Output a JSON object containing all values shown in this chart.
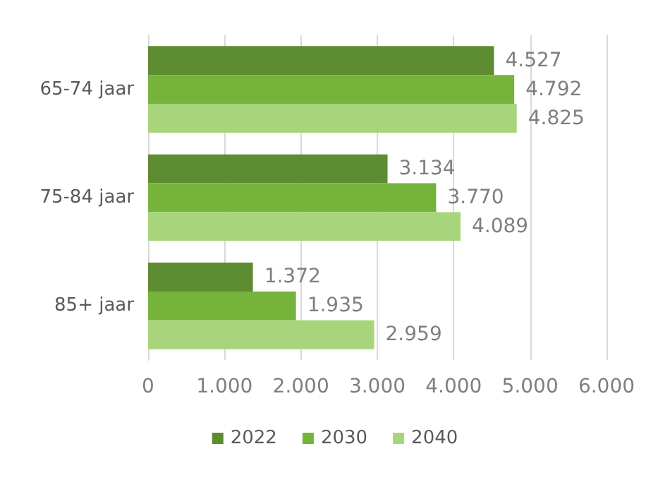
{
  "chart_data": {
    "type": "bar",
    "orientation": "horizontal",
    "categories": [
      "65-74 jaar",
      "75-84 jaar",
      "85+ jaar"
    ],
    "series": [
      {
        "name": "2022",
        "color": "#5e8c31",
        "values": [
          4527,
          3134,
          1372
        ],
        "value_labels": [
          "4.527",
          "3.134",
          "1.372"
        ]
      },
      {
        "name": "2030",
        "color": "#76b33b",
        "values": [
          4792,
          3770,
          1935
        ],
        "value_labels": [
          "4.792",
          "3.770",
          "1.935"
        ]
      },
      {
        "name": "2040",
        "color": "#a8d57b",
        "values": [
          4825,
          4089,
          2959
        ],
        "value_labels": [
          "4.825",
          "4.089",
          "2.959"
        ]
      }
    ],
    "xlim": [
      0,
      6000
    ],
    "xticks": [
      0,
      {
        "value": 1000,
        "label": "1.000"
      },
      {
        "value": 2000,
        "label": "2.000"
      },
      {
        "value": 3000,
        "label": "3.000"
      },
      {
        "value": 4000,
        "label": "4.000"
      },
      {
        "value": 5000,
        "label": "5.000"
      },
      {
        "value": 6000,
        "label": "6.000"
      }
    ],
    "grid": "x",
    "legend": "bottom"
  }
}
